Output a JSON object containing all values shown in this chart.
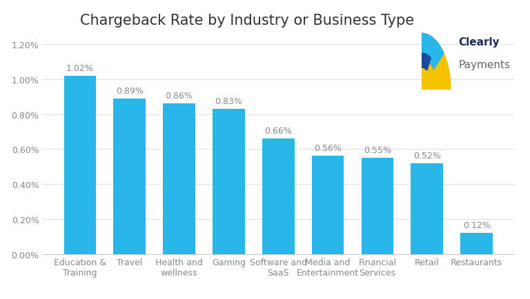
{
  "title": "Chargeback Rate by Industry or Business Type",
  "categories": [
    "Education &\nTraining",
    "Travel",
    "Health and\nwellness",
    "Gaming",
    "Software and\nSaaS",
    "Media and\nEntertainment",
    "Financial\nServices",
    "Retail",
    "Restaurants"
  ],
  "values": [
    0.0102,
    0.0089,
    0.0086,
    0.0083,
    0.0066,
    0.0056,
    0.0055,
    0.0052,
    0.0012
  ],
  "labels": [
    "1.02%",
    "0.89%",
    "0.86%",
    "0.83%",
    "0.66%",
    "0.56%",
    "0.55%",
    "0.52%",
    "0.12%"
  ],
  "bar_color": "#29B6E8",
  "ylim_max": 0.0125,
  "yticks": [
    0.0,
    0.002,
    0.004,
    0.006,
    0.008,
    0.01,
    0.012
  ],
  "ytick_labels": [
    "0.00%",
    "0.20%",
    "0.40%",
    "0.60%",
    "0.80%",
    "1.00%",
    "1.20%"
  ],
  "background_color": "#ffffff",
  "label_color": "#888888",
  "title_color": "#333333",
  "title_fontsize": 15,
  "tick_fontsize": 9,
  "bar_label_fontsize": 9,
  "logo_text_clearly": "Clearly",
  "logo_text_payments": "Payments",
  "logo_clearly_color": "#1a2a5e",
  "logo_payments_color": "#666666",
  "logo_yellow": "#F5C400",
  "logo_blue_light": "#29B6E8",
  "logo_blue_dark": "#1a4a9a"
}
